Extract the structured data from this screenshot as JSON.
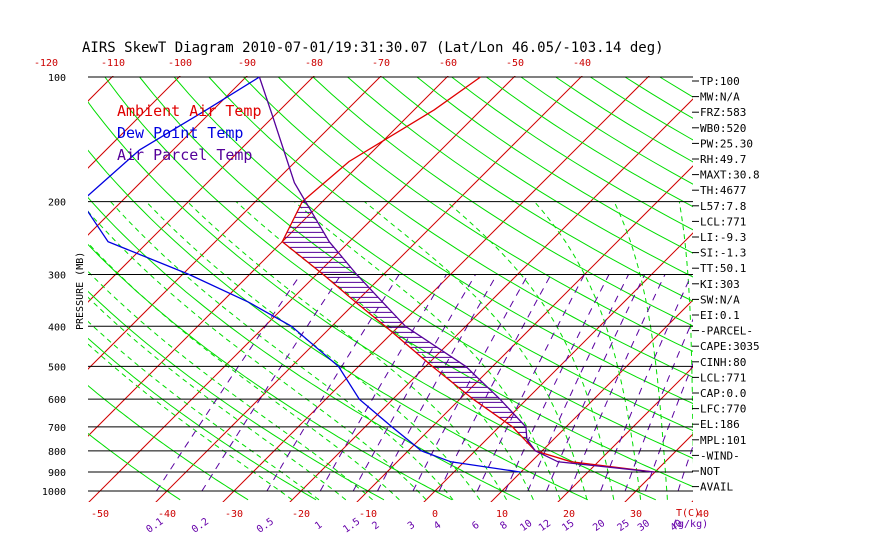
{
  "chart_data": {
    "type": "line",
    "title": "AIRS SkewT Diagram 2010-07-01/19:31:30.07 (Lat/Lon 46.05/-103.14 deg)",
    "ylabel": "PRESSURE (MB)",
    "xlabel_temp": "T(C)",
    "xlabel_mix": "(g/kg)",
    "pressure_ticks": [
      100,
      200,
      300,
      400,
      500,
      600,
      700,
      800,
      900,
      1000
    ],
    "pressure_tick_labels": [
      "100",
      "200",
      "300",
      "400",
      "500",
      "600",
      "700",
      "800",
      "900",
      "1000"
    ],
    "temp_ticks_bottom": [
      -50,
      -40,
      -30,
      -20,
      -10,
      0,
      10,
      20,
      30,
      40
    ],
    "temp_ticks_bottom_labels": [
      "-50",
      "-40",
      "-30",
      "-20",
      "-10",
      "0",
      "10",
      "20",
      "30",
      "40"
    ],
    "temp_ticks_top": [
      -120,
      -110,
      -100,
      -90,
      -80,
      -70,
      -60,
      -50,
      -40
    ],
    "temp_ticks_top_labels": [
      "-120",
      "-110",
      "-100",
      "-90",
      "-80",
      "-70",
      "-60",
      "-50",
      "-40"
    ],
    "mixing_ratios": [
      "0.1",
      "0.2",
      "0.5",
      "1",
      "1.5",
      "2",
      "3",
      "4",
      "6",
      "8",
      "10",
      "12",
      "15",
      "20",
      "25",
      "30",
      "40"
    ],
    "legend": [
      "Ambient Air Temp",
      "Dew Point Temp",
      "Air Parcel Temp"
    ],
    "colors": {
      "ambient": "#e00000",
      "dewpoint": "#0000e0",
      "parcel": "#55009a",
      "green_lines": "#00dd00",
      "isotherms": "#d00000",
      "mixing_lines": "#5a00a0",
      "hatch": "#55009a",
      "axis_labels_red": "#cc0000",
      "axis_labels_purple": "#6600aa"
    },
    "series": [
      {
        "name": "Ambient Air Temp",
        "points": [
          [
            100,
            -55
          ],
          [
            120,
            -57
          ],
          [
            160,
            -62
          ],
          [
            200,
            -63
          ],
          [
            250,
            -60
          ],
          [
            300,
            -49
          ],
          [
            350,
            -40
          ],
          [
            400,
            -32
          ],
          [
            500,
            -19
          ],
          [
            600,
            -8
          ],
          [
            700,
            2
          ],
          [
            800,
            9
          ],
          [
            850,
            16
          ],
          [
            900,
            30
          ]
        ]
      },
      {
        "name": "Dew Point Temp",
        "points": [
          [
            100,
            -88
          ],
          [
            120,
            -91
          ],
          [
            150,
            -95
          ],
          [
            200,
            -96
          ],
          [
            250,
            -86
          ],
          [
            300,
            -69
          ],
          [
            350,
            -56
          ],
          [
            400,
            -46
          ],
          [
            500,
            -33
          ],
          [
            600,
            -25
          ],
          [
            700,
            -16
          ],
          [
            800,
            -8
          ],
          [
            850,
            -2
          ],
          [
            900,
            10
          ]
        ]
      },
      {
        "name": "Air Parcel Temp",
        "points": [
          [
            100,
            -88
          ],
          [
            125,
            -80
          ],
          [
            180,
            -67
          ],
          [
            250,
            -53
          ],
          [
            300,
            -44
          ],
          [
            350,
            -36
          ],
          [
            400,
            -29
          ],
          [
            500,
            -14
          ],
          [
            600,
            -4
          ],
          [
            700,
            4
          ],
          [
            750,
            6
          ],
          [
            800,
            9
          ],
          [
            850,
            14
          ],
          [
            900,
            30
          ]
        ]
      }
    ],
    "indices": [
      "TP:100",
      "MW:N/A",
      "FRZ:583",
      "WB0:520",
      "PW:25.30",
      "RH:49.7",
      "MAXT:30.8",
      "TH:4677",
      "L57:7.8",
      "LCL:771",
      "LI:-9.3",
      "SI:-1.3",
      "TT:50.1",
      "KI:303",
      "SW:N/A",
      "EI:0.1",
      "-PARCEL-",
      "CAPE:3035",
      "CINH:80",
      "LCL:771",
      "CAP:0.0",
      "LFC:770",
      "EL:186",
      "MPL:101",
      "-WIND-",
      "NOT",
      "AVAIL"
    ]
  }
}
